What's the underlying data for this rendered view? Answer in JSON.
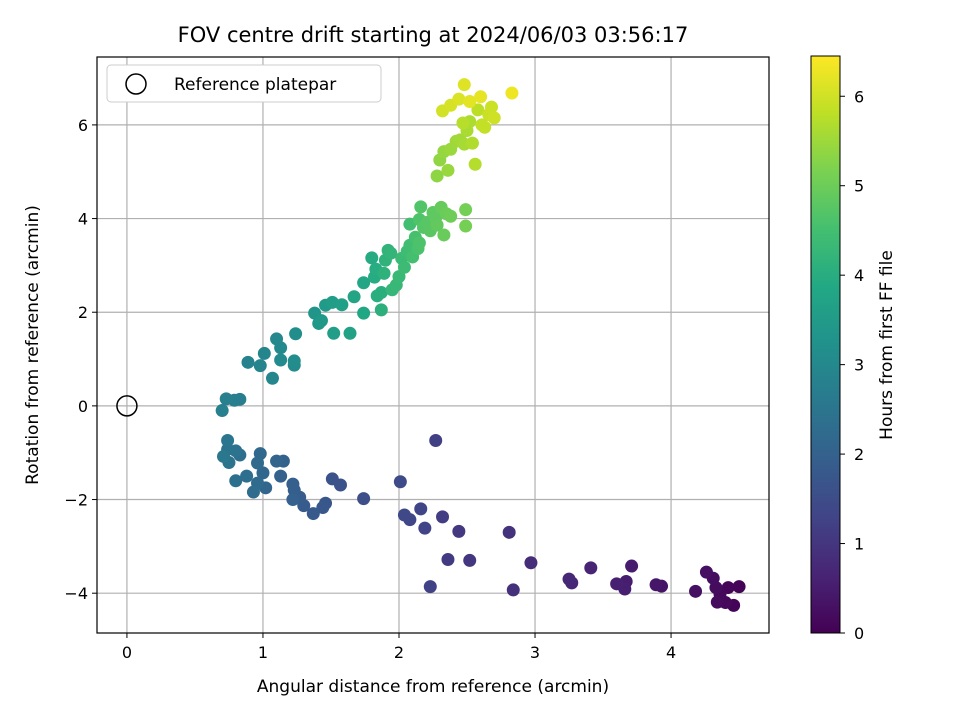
{
  "chart_data": {
    "type": "scatter",
    "title": "FOV centre drift starting at 2024/06/03 03:56:17",
    "xlabel": "Angular distance from reference (arcmin)",
    "ylabel": "Rotation from reference (arcmin)",
    "xlim": [
      -0.22,
      4.72
    ],
    "ylim": [
      -4.85,
      7.45
    ],
    "xticks": [
      0,
      1,
      2,
      3,
      4
    ],
    "yticks": [
      -4,
      -2,
      0,
      2,
      4,
      6
    ],
    "grid": true,
    "legend": {
      "location": "upper-left",
      "entries": [
        "Reference platepar"
      ]
    },
    "reference_point": {
      "x": 0,
      "y": 0,
      "label": "Reference platepar"
    },
    "colorbar": {
      "label": "Hours from first FF file",
      "range": [
        0,
        6.45
      ],
      "ticks": [
        0,
        1,
        2,
        3,
        4,
        5,
        6
      ],
      "colormap": "viridis"
    },
    "points": [
      {
        "x": 4.5,
        "y": -3.86,
        "c": 0.05
      },
      {
        "x": 4.46,
        "y": -4.26,
        "c": 0.07
      },
      {
        "x": 4.42,
        "y": -3.88,
        "c": 0.1
      },
      {
        "x": 4.4,
        "y": -4.2,
        "c": 0.12
      },
      {
        "x": 4.36,
        "y": -4.02,
        "c": 0.15
      },
      {
        "x": 4.34,
        "y": -4.19,
        "c": 0.18
      },
      {
        "x": 4.33,
        "y": -3.88,
        "c": 0.2
      },
      {
        "x": 4.31,
        "y": -3.68,
        "c": 0.22
      },
      {
        "x": 4.26,
        "y": -3.55,
        "c": 0.25
      },
      {
        "x": 4.18,
        "y": -3.96,
        "c": 0.28
      },
      {
        "x": 3.93,
        "y": -3.85,
        "c": 0.35
      },
      {
        "x": 3.89,
        "y": -3.82,
        "c": 0.4
      },
      {
        "x": 3.71,
        "y": -3.42,
        "c": 0.48
      },
      {
        "x": 3.67,
        "y": -3.75,
        "c": 0.52
      },
      {
        "x": 3.66,
        "y": -3.91,
        "c": 0.55
      },
      {
        "x": 3.6,
        "y": -3.8,
        "c": 0.58
      },
      {
        "x": 3.41,
        "y": -3.46,
        "c": 0.65
      },
      {
        "x": 3.27,
        "y": -3.78,
        "c": 0.7
      },
      {
        "x": 3.25,
        "y": -3.7,
        "c": 0.73
      },
      {
        "x": 2.97,
        "y": -3.35,
        "c": 0.82
      },
      {
        "x": 2.84,
        "y": -3.93,
        "c": 0.88
      },
      {
        "x": 2.81,
        "y": -2.7,
        "c": 0.92
      },
      {
        "x": 2.52,
        "y": -3.3,
        "c": 1.0
      },
      {
        "x": 2.44,
        "y": -2.68,
        "c": 1.05
      },
      {
        "x": 2.36,
        "y": -3.28,
        "c": 1.1
      },
      {
        "x": 2.32,
        "y": -2.37,
        "c": 1.15
      },
      {
        "x": 2.27,
        "y": -0.74,
        "c": 1.2
      },
      {
        "x": 2.23,
        "y": -3.86,
        "c": 1.25
      },
      {
        "x": 2.19,
        "y": -2.61,
        "c": 1.28
      },
      {
        "x": 2.16,
        "y": -2.2,
        "c": 1.32
      },
      {
        "x": 2.08,
        "y": -2.43,
        "c": 1.36
      },
      {
        "x": 2.04,
        "y": -2.33,
        "c": 1.4
      },
      {
        "x": 2.01,
        "y": -1.62,
        "c": 1.45
      },
      {
        "x": 1.74,
        "y": -1.98,
        "c": 1.55
      },
      {
        "x": 1.57,
        "y": -1.69,
        "c": 1.62
      },
      {
        "x": 1.51,
        "y": -1.56,
        "c": 1.68
      },
      {
        "x": 1.46,
        "y": -2.08,
        "c": 1.72
      },
      {
        "x": 1.44,
        "y": -2.17,
        "c": 1.76
      },
      {
        "x": 1.37,
        "y": -2.3,
        "c": 1.8
      },
      {
        "x": 1.3,
        "y": -2.13,
        "c": 1.85
      },
      {
        "x": 1.27,
        "y": -1.95,
        "c": 1.88
      },
      {
        "x": 1.23,
        "y": -1.8,
        "c": 1.92
      },
      {
        "x": 1.22,
        "y": -1.67,
        "c": 1.95
      },
      {
        "x": 1.22,
        "y": -2.0,
        "c": 1.98
      },
      {
        "x": 1.13,
        "y": -1.5,
        "c": 2.02
      },
      {
        "x": 1.15,
        "y": -1.18,
        "c": 2.05
      },
      {
        "x": 1.1,
        "y": -1.18,
        "c": 2.08
      },
      {
        "x": 1.02,
        "y": -1.75,
        "c": 2.12
      },
      {
        "x": 1.0,
        "y": -1.43,
        "c": 2.15
      },
      {
        "x": 0.98,
        "y": -1.02,
        "c": 2.18
      },
      {
        "x": 0.96,
        "y": -1.65,
        "c": 2.22
      },
      {
        "x": 0.96,
        "y": -1.22,
        "c": 2.25
      },
      {
        "x": 0.93,
        "y": -1.84,
        "c": 2.28
      },
      {
        "x": 0.88,
        "y": -1.5,
        "c": 2.32
      },
      {
        "x": 0.83,
        "y": -1.05,
        "c": 2.35
      },
      {
        "x": 0.8,
        "y": -1.6,
        "c": 2.38
      },
      {
        "x": 0.8,
        "y": -0.96,
        "c": 2.42
      },
      {
        "x": 0.74,
        "y": -0.93,
        "c": 2.45
      },
      {
        "x": 0.75,
        "y": -1.21,
        "c": 2.48
      },
      {
        "x": 0.74,
        "y": -0.74,
        "c": 2.52
      },
      {
        "x": 0.71,
        "y": -1.08,
        "c": 2.55
      },
      {
        "x": 0.83,
        "y": 0.14,
        "c": 2.7
      },
      {
        "x": 0.79,
        "y": 0.12,
        "c": 2.72
      },
      {
        "x": 0.73,
        "y": 0.15,
        "c": 2.75
      },
      {
        "x": 0.7,
        "y": -0.1,
        "c": 2.78
      },
      {
        "x": 0.89,
        "y": 0.93,
        "c": 2.85
      },
      {
        "x": 0.98,
        "y": 0.86,
        "c": 2.88
      },
      {
        "x": 1.01,
        "y": 1.12,
        "c": 2.92
      },
      {
        "x": 1.07,
        "y": 0.59,
        "c": 2.95
      },
      {
        "x": 1.1,
        "y": 1.43,
        "c": 2.98
      },
      {
        "x": 1.13,
        "y": 1.24,
        "c": 3.02
      },
      {
        "x": 1.13,
        "y": 0.98,
        "c": 3.05
      },
      {
        "x": 1.23,
        "y": 0.87,
        "c": 3.08
      },
      {
        "x": 1.23,
        "y": 0.96,
        "c": 3.12
      },
      {
        "x": 1.24,
        "y": 1.54,
        "c": 3.15
      },
      {
        "x": 1.38,
        "y": 1.98,
        "c": 3.35
      },
      {
        "x": 1.41,
        "y": 1.76,
        "c": 3.4
      },
      {
        "x": 1.43,
        "y": 1.82,
        "c": 3.45
      },
      {
        "x": 1.46,
        "y": 2.15,
        "c": 3.5
      },
      {
        "x": 1.51,
        "y": 2.21,
        "c": 3.55
      },
      {
        "x": 1.52,
        "y": 1.55,
        "c": 3.58
      },
      {
        "x": 1.58,
        "y": 2.16,
        "c": 3.62
      },
      {
        "x": 1.64,
        "y": 1.55,
        "c": 3.68
      },
      {
        "x": 1.67,
        "y": 2.33,
        "c": 3.75
      },
      {
        "x": 1.74,
        "y": 2.63,
        "c": 3.82
      },
      {
        "x": 1.74,
        "y": 1.98,
        "c": 3.85
      },
      {
        "x": 1.8,
        "y": 3.16,
        "c": 3.92
      },
      {
        "x": 1.82,
        "y": 2.75,
        "c": 3.95
      },
      {
        "x": 1.83,
        "y": 2.92,
        "c": 3.98
      },
      {
        "x": 1.84,
        "y": 2.35,
        "c": 4.02
      },
      {
        "x": 1.87,
        "y": 2.42,
        "c": 4.05
      },
      {
        "x": 1.87,
        "y": 2.05,
        "c": 4.08
      },
      {
        "x": 1.89,
        "y": 2.83,
        "c": 4.12
      },
      {
        "x": 1.9,
        "y": 3.11,
        "c": 4.15
      },
      {
        "x": 1.92,
        "y": 3.32,
        "c": 4.18
      },
      {
        "x": 1.94,
        "y": 3.26,
        "c": 4.22
      },
      {
        "x": 1.95,
        "y": 2.48,
        "c": 4.25
      },
      {
        "x": 1.98,
        "y": 2.58,
        "c": 4.28
      },
      {
        "x": 2.0,
        "y": 2.76,
        "c": 4.32
      },
      {
        "x": 2.02,
        "y": 3.15,
        "c": 4.35
      },
      {
        "x": 2.04,
        "y": 2.96,
        "c": 4.38
      },
      {
        "x": 2.06,
        "y": 3.3,
        "c": 4.42
      },
      {
        "x": 2.08,
        "y": 3.43,
        "c": 4.45
      },
      {
        "x": 2.08,
        "y": 3.88,
        "c": 4.48
      },
      {
        "x": 2.1,
        "y": 3.18,
        "c": 4.52
      },
      {
        "x": 2.12,
        "y": 3.6,
        "c": 4.55
      },
      {
        "x": 2.14,
        "y": 3.36,
        "c": 4.58
      },
      {
        "x": 2.15,
        "y": 3.48,
        "c": 4.62
      },
      {
        "x": 2.15,
        "y": 3.98,
        "c": 4.65
      },
      {
        "x": 2.16,
        "y": 4.25,
        "c": 4.68
      },
      {
        "x": 2.18,
        "y": 3.81,
        "c": 4.72
      },
      {
        "x": 2.21,
        "y": 3.92,
        "c": 4.75
      },
      {
        "x": 2.23,
        "y": 3.74,
        "c": 4.78
      },
      {
        "x": 2.25,
        "y": 4.13,
        "c": 4.82
      },
      {
        "x": 2.27,
        "y": 4.02,
        "c": 4.85
      },
      {
        "x": 2.28,
        "y": 3.86,
        "c": 4.88
      },
      {
        "x": 2.31,
        "y": 4.24,
        "c": 4.92
      },
      {
        "x": 2.33,
        "y": 3.65,
        "c": 4.95
      },
      {
        "x": 2.35,
        "y": 4.1,
        "c": 4.98
      },
      {
        "x": 2.38,
        "y": 4.05,
        "c": 5.02
      },
      {
        "x": 2.49,
        "y": 4.19,
        "c": 5.08
      },
      {
        "x": 2.49,
        "y": 3.84,
        "c": 5.1
      },
      {
        "x": 2.28,
        "y": 4.91,
        "c": 5.35
      },
      {
        "x": 2.3,
        "y": 5.25,
        "c": 5.38
      },
      {
        "x": 2.33,
        "y": 5.43,
        "c": 5.42
      },
      {
        "x": 2.36,
        "y": 5.03,
        "c": 5.45
      },
      {
        "x": 2.38,
        "y": 5.48,
        "c": 5.48
      },
      {
        "x": 2.42,
        "y": 5.65,
        "c": 5.52
      },
      {
        "x": 2.45,
        "y": 5.68,
        "c": 5.55
      },
      {
        "x": 2.48,
        "y": 5.59,
        "c": 5.58
      },
      {
        "x": 2.5,
        "y": 5.88,
        "c": 5.62
      },
      {
        "x": 2.52,
        "y": 6.07,
        "c": 5.65
      },
      {
        "x": 2.54,
        "y": 5.61,
        "c": 5.68
      },
      {
        "x": 2.56,
        "y": 5.16,
        "c": 5.72
      },
      {
        "x": 2.47,
        "y": 6.04,
        "c": 5.75
      },
      {
        "x": 2.58,
        "y": 6.32,
        "c": 5.8
      },
      {
        "x": 2.61,
        "y": 6.0,
        "c": 5.85
      },
      {
        "x": 2.63,
        "y": 5.95,
        "c": 5.88
      },
      {
        "x": 2.66,
        "y": 6.22,
        "c": 5.92
      },
      {
        "x": 2.68,
        "y": 6.38,
        "c": 5.95
      },
      {
        "x": 2.7,
        "y": 6.15,
        "c": 5.98
      },
      {
        "x": 2.32,
        "y": 6.3,
        "c": 6.02
      },
      {
        "x": 2.38,
        "y": 6.42,
        "c": 6.05
      },
      {
        "x": 2.44,
        "y": 6.55,
        "c": 6.1
      },
      {
        "x": 2.48,
        "y": 6.86,
        "c": 6.15
      },
      {
        "x": 2.52,
        "y": 6.5,
        "c": 6.18
      },
      {
        "x": 2.6,
        "y": 6.6,
        "c": 6.22
      },
      {
        "x": 2.83,
        "y": 6.68,
        "c": 6.3
      }
    ]
  }
}
